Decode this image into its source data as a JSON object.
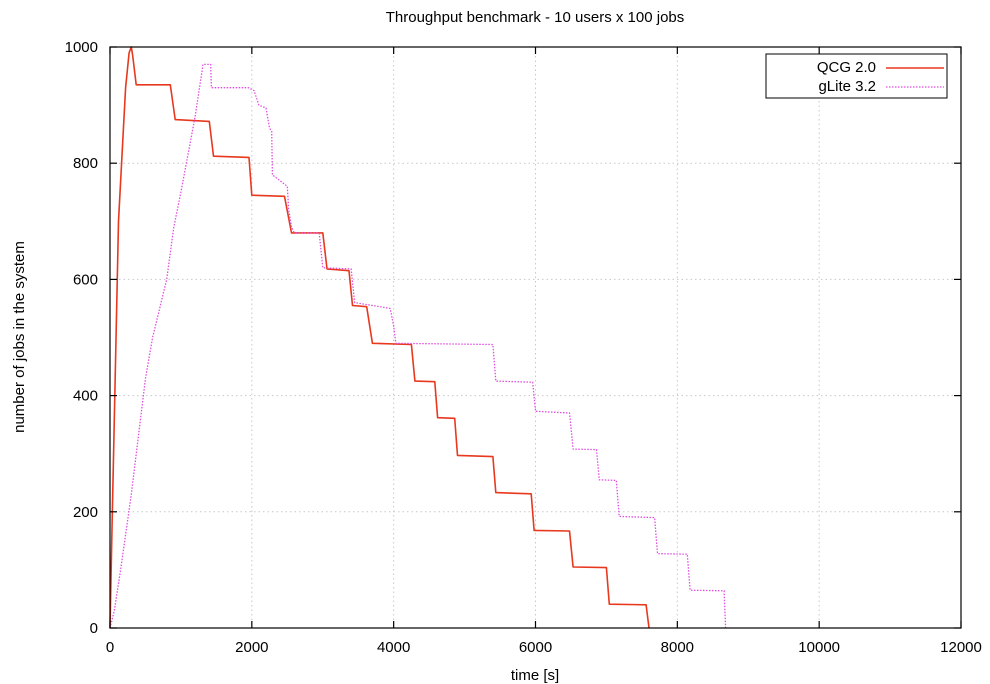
{
  "chart_data": {
    "type": "line",
    "title": "Throughput benchmark - 10 users x 100 jobs",
    "xlabel": "time [s]",
    "ylabel": "number of jobs in the system",
    "xlim": [
      0,
      12000
    ],
    "ylim": [
      0,
      1000
    ],
    "xticks": [
      0,
      2000,
      4000,
      6000,
      8000,
      10000,
      12000
    ],
    "yticks": [
      0,
      200,
      400,
      600,
      800,
      1000
    ],
    "grid": true,
    "legend_position": "top-right",
    "series": [
      {
        "name": "QCG 2.0",
        "color": "#e8381e",
        "dash": "solid",
        "points": [
          [
            0,
            0
          ],
          [
            30,
            180
          ],
          [
            120,
            700
          ],
          [
            220,
            930
          ],
          [
            270,
            990
          ],
          [
            300,
            1000
          ],
          [
            320,
            985
          ],
          [
            370,
            935
          ],
          [
            850,
            935
          ],
          [
            920,
            875
          ],
          [
            1400,
            872
          ],
          [
            1460,
            812
          ],
          [
            1960,
            810
          ],
          [
            2000,
            745
          ],
          [
            2460,
            743
          ],
          [
            2560,
            680
          ],
          [
            3000,
            680
          ],
          [
            3060,
            618
          ],
          [
            3370,
            615
          ],
          [
            3420,
            555
          ],
          [
            3620,
            553
          ],
          [
            3700,
            490
          ],
          [
            4250,
            488
          ],
          [
            4300,
            425
          ],
          [
            4580,
            424
          ],
          [
            4620,
            362
          ],
          [
            4860,
            361
          ],
          [
            4900,
            297
          ],
          [
            5400,
            295
          ],
          [
            5440,
            233
          ],
          [
            5940,
            231
          ],
          [
            5980,
            168
          ],
          [
            6480,
            167
          ],
          [
            6530,
            105
          ],
          [
            7000,
            104
          ],
          [
            7040,
            41
          ],
          [
            7560,
            40
          ],
          [
            7600,
            0
          ]
        ]
      },
      {
        "name": "gLite 3.2",
        "color": "#e04fe0",
        "dash": "dotted",
        "points": [
          [
            0,
            0
          ],
          [
            60,
            30
          ],
          [
            150,
            100
          ],
          [
            300,
            230
          ],
          [
            400,
            330
          ],
          [
            500,
            430
          ],
          [
            600,
            500
          ],
          [
            800,
            600
          ],
          [
            900,
            690
          ],
          [
            1000,
            750
          ],
          [
            1200,
            880
          ],
          [
            1250,
            920
          ],
          [
            1300,
            960
          ],
          [
            1310,
            970
          ],
          [
            1420,
            970
          ],
          [
            1430,
            930
          ],
          [
            1950,
            930
          ],
          [
            2030,
            925
          ],
          [
            2100,
            900
          ],
          [
            2200,
            895
          ],
          [
            2250,
            860
          ],
          [
            2280,
            855
          ],
          [
            2290,
            780
          ],
          [
            2500,
            760
          ],
          [
            2520,
            720
          ],
          [
            2560,
            690
          ],
          [
            2600,
            680
          ],
          [
            2950,
            680
          ],
          [
            3000,
            620
          ],
          [
            3400,
            618
          ],
          [
            3450,
            560
          ],
          [
            3950,
            550
          ],
          [
            4000,
            520
          ],
          [
            4030,
            490
          ],
          [
            5400,
            488
          ],
          [
            5440,
            425
          ],
          [
            5960,
            423
          ],
          [
            6000,
            373
          ],
          [
            6480,
            370
          ],
          [
            6530,
            308
          ],
          [
            6860,
            307
          ],
          [
            6900,
            255
          ],
          [
            7140,
            254
          ],
          [
            7180,
            192
          ],
          [
            7680,
            190
          ],
          [
            7720,
            128
          ],
          [
            8140,
            127
          ],
          [
            8180,
            65
          ],
          [
            8660,
            64
          ],
          [
            8680,
            0
          ]
        ]
      }
    ]
  }
}
